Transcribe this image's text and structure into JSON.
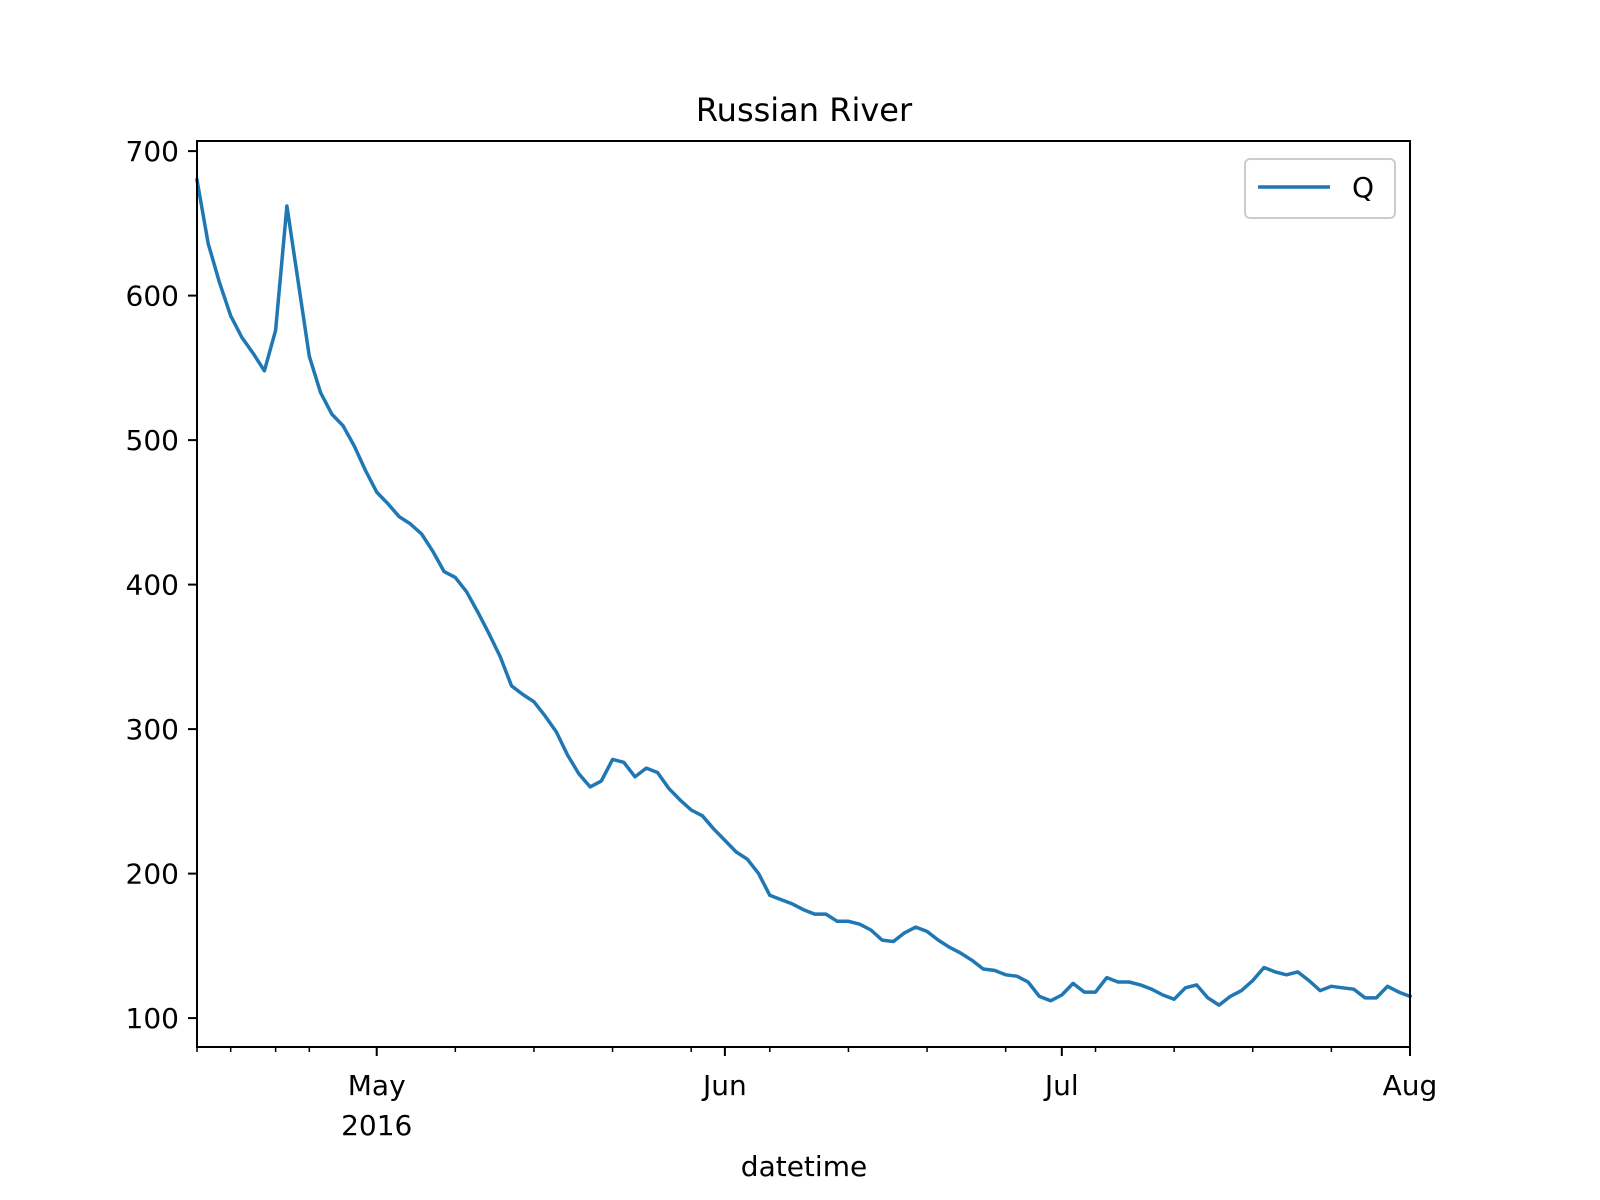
{
  "chart_data": {
    "type": "line",
    "title": "Russian River",
    "xlabel": "datetime",
    "ylabel": "",
    "grid": false,
    "legend_position": "top-right",
    "line_color": "#1f77b4",
    "ylim": [
      80,
      707
    ],
    "xlim": [
      "2016-04-15",
      "2016-08-01"
    ],
    "y_ticks": [
      100,
      200,
      300,
      400,
      500,
      600,
      700
    ],
    "x_major_ticks": [
      {
        "date": "2016-05-01",
        "label": "May",
        "sublabel": "2016"
      },
      {
        "date": "2016-06-01",
        "label": "Jun",
        "sublabel": ""
      },
      {
        "date": "2016-07-01",
        "label": "Jul",
        "sublabel": ""
      },
      {
        "date": "2016-08-01",
        "label": "Aug",
        "sublabel": ""
      }
    ],
    "x_minor_ticks": [
      "2016-04-15",
      "2016-04-18",
      "2016-04-22",
      "2016-04-25",
      "2016-05-08",
      "2016-05-15",
      "2016-05-22",
      "2016-05-29",
      "2016-06-05",
      "2016-06-12",
      "2016-06-19",
      "2016-06-26",
      "2016-07-04",
      "2016-07-11",
      "2016-07-18",
      "2016-07-25"
    ],
    "series": [
      {
        "name": "Q",
        "x": [
          "2016-04-15",
          "2016-04-16",
          "2016-04-17",
          "2016-04-18",
          "2016-04-19",
          "2016-04-20",
          "2016-04-21",
          "2016-04-22",
          "2016-04-23",
          "2016-04-24",
          "2016-04-25",
          "2016-04-26",
          "2016-04-27",
          "2016-04-28",
          "2016-04-29",
          "2016-04-30",
          "2016-05-01",
          "2016-05-02",
          "2016-05-03",
          "2016-05-04",
          "2016-05-05",
          "2016-05-06",
          "2016-05-07",
          "2016-05-08",
          "2016-05-09",
          "2016-05-10",
          "2016-05-11",
          "2016-05-12",
          "2016-05-13",
          "2016-05-14",
          "2016-05-15",
          "2016-05-16",
          "2016-05-17",
          "2016-05-18",
          "2016-05-19",
          "2016-05-20",
          "2016-05-21",
          "2016-05-22",
          "2016-05-23",
          "2016-05-24",
          "2016-05-25",
          "2016-05-26",
          "2016-05-27",
          "2016-05-28",
          "2016-05-29",
          "2016-05-30",
          "2016-05-31",
          "2016-06-01",
          "2016-06-02",
          "2016-06-03",
          "2016-06-04",
          "2016-06-05",
          "2016-06-06",
          "2016-06-07",
          "2016-06-08",
          "2016-06-09",
          "2016-06-10",
          "2016-06-11",
          "2016-06-12",
          "2016-06-13",
          "2016-06-14",
          "2016-06-15",
          "2016-06-16",
          "2016-06-17",
          "2016-06-18",
          "2016-06-19",
          "2016-06-20",
          "2016-06-21",
          "2016-06-22",
          "2016-06-23",
          "2016-06-24",
          "2016-06-25",
          "2016-06-26",
          "2016-06-27",
          "2016-06-28",
          "2016-06-29",
          "2016-06-30",
          "2016-07-01",
          "2016-07-02",
          "2016-07-03",
          "2016-07-04",
          "2016-07-05",
          "2016-07-06",
          "2016-07-07",
          "2016-07-08",
          "2016-07-09",
          "2016-07-10",
          "2016-07-11",
          "2016-07-12",
          "2016-07-13",
          "2016-07-14",
          "2016-07-15",
          "2016-07-16",
          "2016-07-17",
          "2016-07-18",
          "2016-07-19",
          "2016-07-20",
          "2016-07-21",
          "2016-07-22",
          "2016-07-23",
          "2016-07-24",
          "2016-07-25",
          "2016-07-26",
          "2016-07-27",
          "2016-07-28",
          "2016-07-29",
          "2016-07-30",
          "2016-07-31",
          "2016-08-01"
        ],
        "y": [
          680,
          636,
          609,
          586,
          571,
          560,
          548,
          576,
          662,
          610,
          558,
          533,
          518,
          510,
          496,
          479,
          464,
          456,
          447,
          442,
          435,
          423,
          409,
          405,
          395,
          381,
          366,
          350,
          330,
          324,
          319,
          309,
          298,
          282,
          269,
          260,
          264,
          279,
          277,
          267,
          273,
          270,
          259,
          251,
          244,
          240,
          231,
          223,
          215,
          210,
          200,
          185,
          182,
          179,
          175,
          172,
          172,
          167,
          167,
          165,
          161,
          154,
          153,
          159,
          163,
          160,
          154,
          149,
          145,
          140,
          134,
          133,
          130,
          129,
          125,
          115,
          112,
          116,
          124,
          118,
          118,
          128,
          125,
          125,
          123,
          120,
          116,
          113,
          121,
          123,
          114,
          109,
          115,
          119,
          126,
          135,
          132,
          130,
          132,
          126,
          119,
          122,
          121,
          120,
          114,
          114,
          122,
          118,
          115
        ]
      }
    ]
  }
}
